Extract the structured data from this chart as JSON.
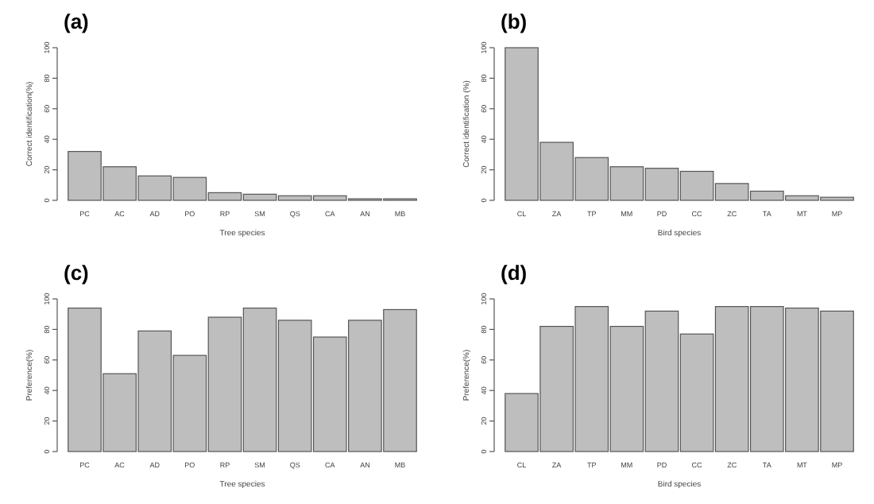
{
  "chart_data": [
    {
      "type": "bar",
      "title": "(a)",
      "xlabel": "Tree species",
      "ylabel": "Correct identification(%)",
      "categories": [
        "PC",
        "AC",
        "AD",
        "PO",
        "RP",
        "SM",
        "QS",
        "CA",
        "AN",
        "MB"
      ],
      "values": [
        32,
        22,
        16,
        15,
        5,
        4,
        3,
        3,
        1,
        1
      ],
      "color": "#bebebe",
      "ylim": [
        0,
        100
      ],
      "yticks": [
        0,
        20,
        40,
        60,
        80,
        100
      ],
      "grid": false
    },
    {
      "type": "bar",
      "title": "(b)",
      "xlabel": "Bird species",
      "ylabel": "Correct identification (%)",
      "categories": [
        "CL",
        "ZA",
        "TP",
        "MM",
        "PD",
        "CC",
        "ZC",
        "TA",
        "MT",
        "MP"
      ],
      "values": [
        100,
        38,
        28,
        22,
        21,
        19,
        11,
        6,
        3,
        2
      ],
      "color": "#bebebe",
      "ylim": [
        0,
        100
      ],
      "yticks": [
        0,
        20,
        40,
        60,
        80,
        100
      ],
      "grid": false
    },
    {
      "type": "bar",
      "title": "(c)",
      "xlabel": "Tree species",
      "ylabel": "Preference(%)",
      "categories": [
        "PC",
        "AC",
        "AD",
        "PO",
        "RP",
        "SM",
        "QS",
        "CA",
        "AN",
        "MB"
      ],
      "values": [
        94,
        51,
        79,
        63,
        88,
        94,
        86,
        75,
        86,
        93
      ],
      "color": "#bebebe",
      "ylim": [
        0,
        100
      ],
      "yticks": [
        0,
        20,
        40,
        60,
        80,
        100
      ],
      "grid": false
    },
    {
      "type": "bar",
      "title": "(d)",
      "xlabel": "Bird species",
      "ylabel": "Preference(%)",
      "categories": [
        "CL",
        "ZA",
        "TP",
        "MM",
        "PD",
        "CC",
        "ZC",
        "TA",
        "MT",
        "MP"
      ],
      "values": [
        38,
        82,
        95,
        82,
        92,
        77,
        95,
        95,
        94,
        92
      ],
      "color": "#bebebe",
      "ylim": [
        0,
        100
      ],
      "yticks": [
        0,
        20,
        40,
        60,
        80,
        100
      ],
      "grid": false
    }
  ]
}
